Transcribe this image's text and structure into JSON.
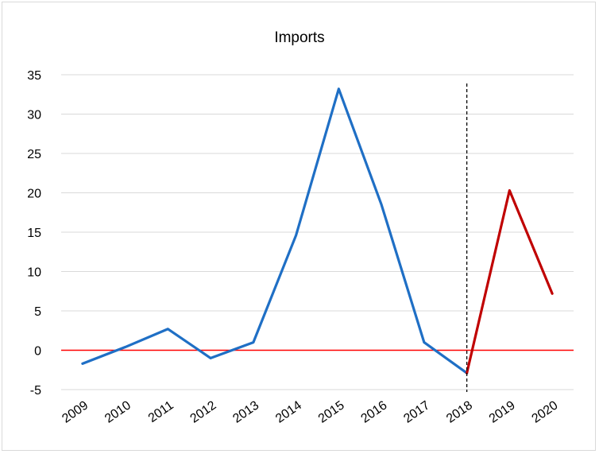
{
  "chart_data": {
    "type": "line",
    "title": "Imports",
    "xlabel": "",
    "ylabel": "",
    "categories": [
      "2009",
      "2010",
      "2011",
      "2012",
      "2013",
      "2014",
      "2015",
      "2016",
      "2017",
      "2018",
      "2019",
      "2020"
    ],
    "ylim": [
      -5,
      35
    ],
    "yticks": [
      -5,
      0,
      5,
      10,
      15,
      20,
      25,
      30,
      35
    ],
    "grid": true,
    "legend": "none",
    "series": [
      {
        "color": "#1f6fc5",
        "x": [
          "2009",
          "2010",
          "2011",
          "2012",
          "2013",
          "2014",
          "2015",
          "2016",
          "2017",
          "2018"
        ],
        "values": [
          -1.7,
          0.4,
          2.7,
          -1.0,
          1.0,
          14.6,
          33.2,
          18.5,
          1.0,
          -2.9
        ]
      },
      {
        "color": "#c00000",
        "x": [
          "2018",
          "2019",
          "2020"
        ],
        "values": [
          -2.9,
          20.3,
          7.2
        ]
      }
    ],
    "zero_line_color": "#ff0000",
    "vertical_marker": {
      "x": "2018",
      "style": "dashed",
      "color": "#000000"
    }
  }
}
